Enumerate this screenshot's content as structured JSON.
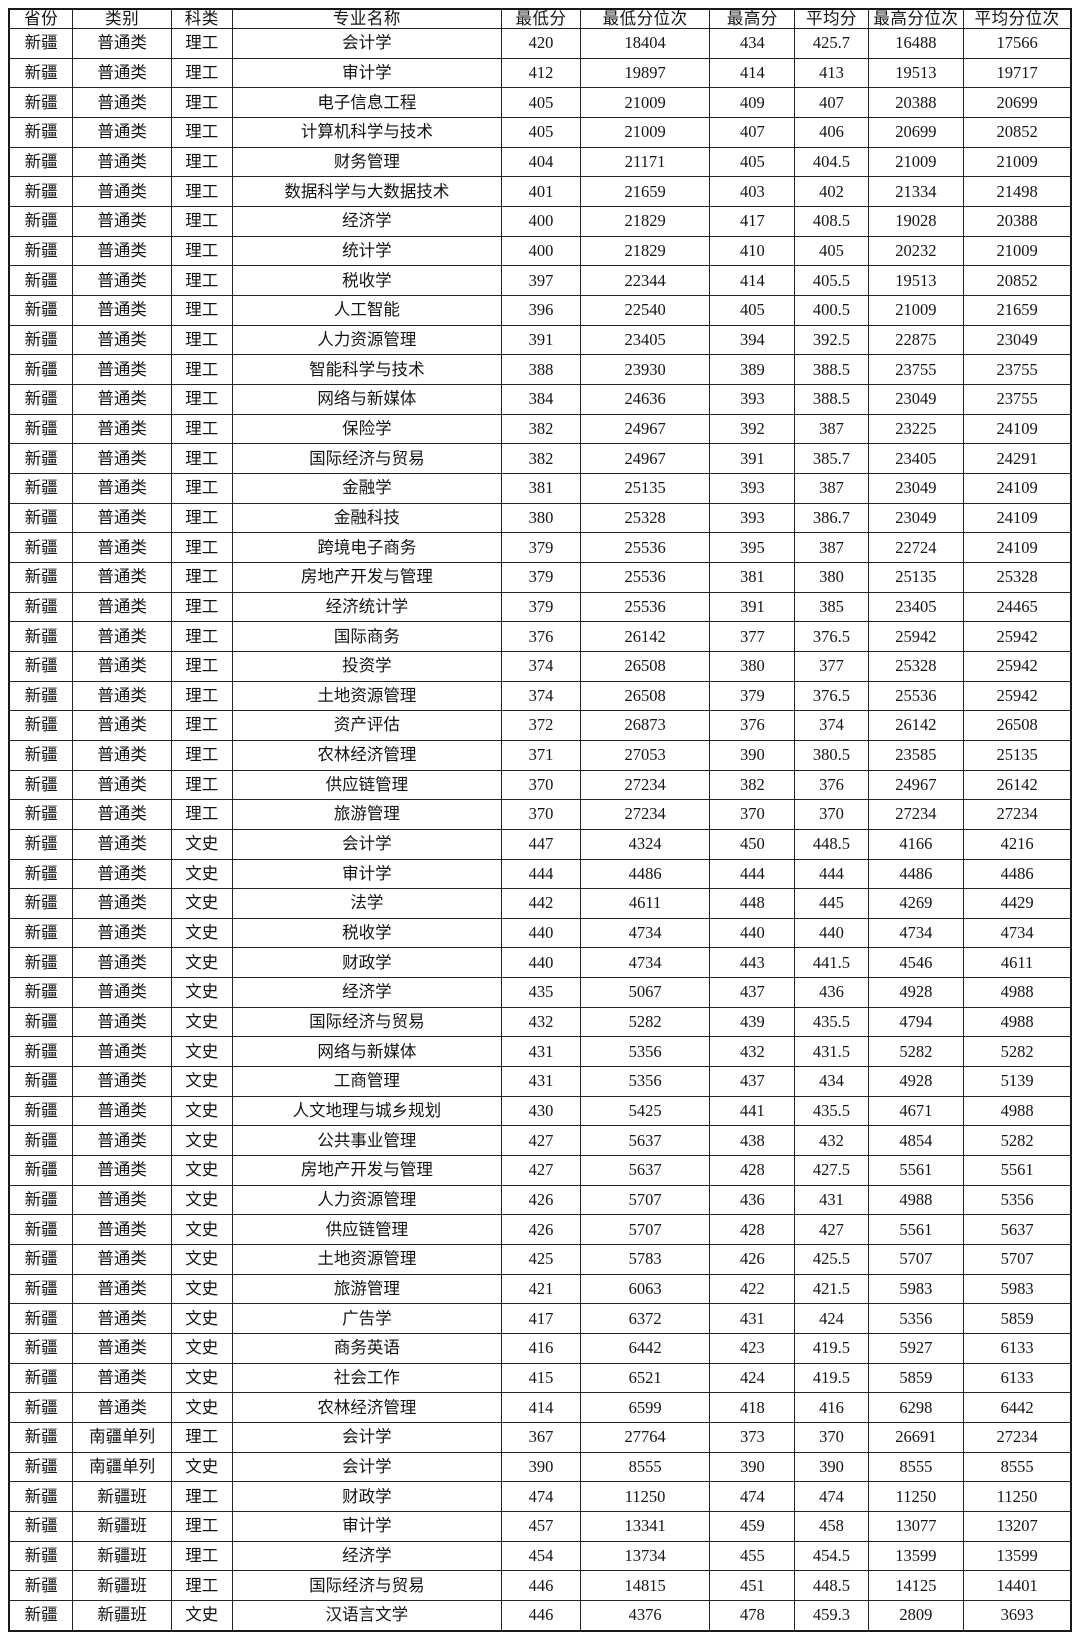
{
  "table": {
    "columns": [
      "省份",
      "类别",
      "科类",
      "专业名称",
      "最低分",
      "最低分位次",
      "最高分",
      "平均分",
      "最高分位次",
      "平均分位次"
    ],
    "rows": [
      [
        "新疆",
        "普通类",
        "理工",
        "会计学",
        "420",
        "18404",
        "434",
        "425.7",
        "16488",
        "17566"
      ],
      [
        "新疆",
        "普通类",
        "理工",
        "审计学",
        "412",
        "19897",
        "414",
        "413",
        "19513",
        "19717"
      ],
      [
        "新疆",
        "普通类",
        "理工",
        "电子信息工程",
        "405",
        "21009",
        "409",
        "407",
        "20388",
        "20699"
      ],
      [
        "新疆",
        "普通类",
        "理工",
        "计算机科学与技术",
        "405",
        "21009",
        "407",
        "406",
        "20699",
        "20852"
      ],
      [
        "新疆",
        "普通类",
        "理工",
        "财务管理",
        "404",
        "21171",
        "405",
        "404.5",
        "21009",
        "21009"
      ],
      [
        "新疆",
        "普通类",
        "理工",
        "数据科学与大数据技术",
        "401",
        "21659",
        "403",
        "402",
        "21334",
        "21498"
      ],
      [
        "新疆",
        "普通类",
        "理工",
        "经济学",
        "400",
        "21829",
        "417",
        "408.5",
        "19028",
        "20388"
      ],
      [
        "新疆",
        "普通类",
        "理工",
        "统计学",
        "400",
        "21829",
        "410",
        "405",
        "20232",
        "21009"
      ],
      [
        "新疆",
        "普通类",
        "理工",
        "税收学",
        "397",
        "22344",
        "414",
        "405.5",
        "19513",
        "20852"
      ],
      [
        "新疆",
        "普通类",
        "理工",
        "人工智能",
        "396",
        "22540",
        "405",
        "400.5",
        "21009",
        "21659"
      ],
      [
        "新疆",
        "普通类",
        "理工",
        "人力资源管理",
        "391",
        "23405",
        "394",
        "392.5",
        "22875",
        "23049"
      ],
      [
        "新疆",
        "普通类",
        "理工",
        "智能科学与技术",
        "388",
        "23930",
        "389",
        "388.5",
        "23755",
        "23755"
      ],
      [
        "新疆",
        "普通类",
        "理工",
        "网络与新媒体",
        "384",
        "24636",
        "393",
        "388.5",
        "23049",
        "23755"
      ],
      [
        "新疆",
        "普通类",
        "理工",
        "保险学",
        "382",
        "24967",
        "392",
        "387",
        "23225",
        "24109"
      ],
      [
        "新疆",
        "普通类",
        "理工",
        "国际经济与贸易",
        "382",
        "24967",
        "391",
        "385.7",
        "23405",
        "24291"
      ],
      [
        "新疆",
        "普通类",
        "理工",
        "金融学",
        "381",
        "25135",
        "393",
        "387",
        "23049",
        "24109"
      ],
      [
        "新疆",
        "普通类",
        "理工",
        "金融科技",
        "380",
        "25328",
        "393",
        "386.7",
        "23049",
        "24109"
      ],
      [
        "新疆",
        "普通类",
        "理工",
        "跨境电子商务",
        "379",
        "25536",
        "395",
        "387",
        "22724",
        "24109"
      ],
      [
        "新疆",
        "普通类",
        "理工",
        "房地产开发与管理",
        "379",
        "25536",
        "381",
        "380",
        "25135",
        "25328"
      ],
      [
        "新疆",
        "普通类",
        "理工",
        "经济统计学",
        "379",
        "25536",
        "391",
        "385",
        "23405",
        "24465"
      ],
      [
        "新疆",
        "普通类",
        "理工",
        "国际商务",
        "376",
        "26142",
        "377",
        "376.5",
        "25942",
        "25942"
      ],
      [
        "新疆",
        "普通类",
        "理工",
        "投资学",
        "374",
        "26508",
        "380",
        "377",
        "25328",
        "25942"
      ],
      [
        "新疆",
        "普通类",
        "理工",
        "土地资源管理",
        "374",
        "26508",
        "379",
        "376.5",
        "25536",
        "25942"
      ],
      [
        "新疆",
        "普通类",
        "理工",
        "资产评估",
        "372",
        "26873",
        "376",
        "374",
        "26142",
        "26508"
      ],
      [
        "新疆",
        "普通类",
        "理工",
        "农林经济管理",
        "371",
        "27053",
        "390",
        "380.5",
        "23585",
        "25135"
      ],
      [
        "新疆",
        "普通类",
        "理工",
        "供应链管理",
        "370",
        "27234",
        "382",
        "376",
        "24967",
        "26142"
      ],
      [
        "新疆",
        "普通类",
        "理工",
        "旅游管理",
        "370",
        "27234",
        "370",
        "370",
        "27234",
        "27234"
      ],
      [
        "新疆",
        "普通类",
        "文史",
        "会计学",
        "447",
        "4324",
        "450",
        "448.5",
        "4166",
        "4216"
      ],
      [
        "新疆",
        "普通类",
        "文史",
        "审计学",
        "444",
        "4486",
        "444",
        "444",
        "4486",
        "4486"
      ],
      [
        "新疆",
        "普通类",
        "文史",
        "法学",
        "442",
        "4611",
        "448",
        "445",
        "4269",
        "4429"
      ],
      [
        "新疆",
        "普通类",
        "文史",
        "税收学",
        "440",
        "4734",
        "440",
        "440",
        "4734",
        "4734"
      ],
      [
        "新疆",
        "普通类",
        "文史",
        "财政学",
        "440",
        "4734",
        "443",
        "441.5",
        "4546",
        "4611"
      ],
      [
        "新疆",
        "普通类",
        "文史",
        "经济学",
        "435",
        "5067",
        "437",
        "436",
        "4928",
        "4988"
      ],
      [
        "新疆",
        "普通类",
        "文史",
        "国际经济与贸易",
        "432",
        "5282",
        "439",
        "435.5",
        "4794",
        "4988"
      ],
      [
        "新疆",
        "普通类",
        "文史",
        "网络与新媒体",
        "431",
        "5356",
        "432",
        "431.5",
        "5282",
        "5282"
      ],
      [
        "新疆",
        "普通类",
        "文史",
        "工商管理",
        "431",
        "5356",
        "437",
        "434",
        "4928",
        "5139"
      ],
      [
        "新疆",
        "普通类",
        "文史",
        "人文地理与城乡规划",
        "430",
        "5425",
        "441",
        "435.5",
        "4671",
        "4988"
      ],
      [
        "新疆",
        "普通类",
        "文史",
        "公共事业管理",
        "427",
        "5637",
        "438",
        "432",
        "4854",
        "5282"
      ],
      [
        "新疆",
        "普通类",
        "文史",
        "房地产开发与管理",
        "427",
        "5637",
        "428",
        "427.5",
        "5561",
        "5561"
      ],
      [
        "新疆",
        "普通类",
        "文史",
        "人力资源管理",
        "426",
        "5707",
        "436",
        "431",
        "4988",
        "5356"
      ],
      [
        "新疆",
        "普通类",
        "文史",
        "供应链管理",
        "426",
        "5707",
        "428",
        "427",
        "5561",
        "5637"
      ],
      [
        "新疆",
        "普通类",
        "文史",
        "土地资源管理",
        "425",
        "5783",
        "426",
        "425.5",
        "5707",
        "5707"
      ],
      [
        "新疆",
        "普通类",
        "文史",
        "旅游管理",
        "421",
        "6063",
        "422",
        "421.5",
        "5983",
        "5983"
      ],
      [
        "新疆",
        "普通类",
        "文史",
        "广告学",
        "417",
        "6372",
        "431",
        "424",
        "5356",
        "5859"
      ],
      [
        "新疆",
        "普通类",
        "文史",
        "商务英语",
        "416",
        "6442",
        "423",
        "419.5",
        "5927",
        "6133"
      ],
      [
        "新疆",
        "普通类",
        "文史",
        "社会工作",
        "415",
        "6521",
        "424",
        "419.5",
        "5859",
        "6133"
      ],
      [
        "新疆",
        "普通类",
        "文史",
        "农林经济管理",
        "414",
        "6599",
        "418",
        "416",
        "6298",
        "6442"
      ],
      [
        "新疆",
        "南疆单列",
        "理工",
        "会计学",
        "367",
        "27764",
        "373",
        "370",
        "26691",
        "27234"
      ],
      [
        "新疆",
        "南疆单列",
        "文史",
        "会计学",
        "390",
        "8555",
        "390",
        "390",
        "8555",
        "8555"
      ],
      [
        "新疆",
        "新疆班",
        "理工",
        "财政学",
        "474",
        "11250",
        "474",
        "474",
        "11250",
        "11250"
      ],
      [
        "新疆",
        "新疆班",
        "理工",
        "审计学",
        "457",
        "13341",
        "459",
        "458",
        "13077",
        "13207"
      ],
      [
        "新疆",
        "新疆班",
        "理工",
        "经济学",
        "454",
        "13734",
        "455",
        "454.5",
        "13599",
        "13599"
      ],
      [
        "新疆",
        "新疆班",
        "理工",
        "国际经济与贸易",
        "446",
        "14815",
        "451",
        "448.5",
        "14125",
        "14401"
      ],
      [
        "新疆",
        "新疆班",
        "文史",
        "汉语言文学",
        "446",
        "4376",
        "478",
        "459.3",
        "2809",
        "3693"
      ]
    ]
  }
}
